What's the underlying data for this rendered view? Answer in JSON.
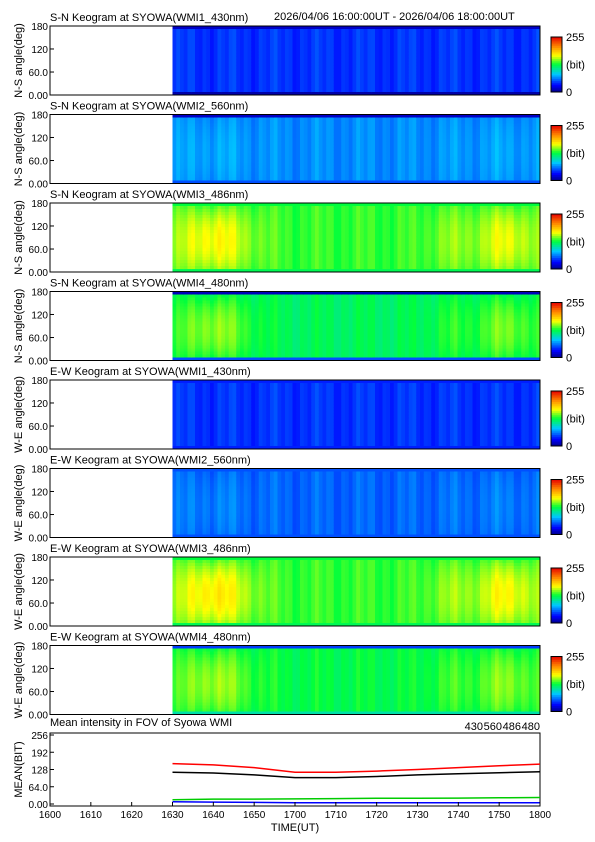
{
  "header": {
    "time_range": "2026/04/06 16:00:00UT - 2026/04/06 18:00:00UT"
  },
  "colorbar": {
    "max_label": "255",
    "unit_label": "(bit)",
    "min_label": "0"
  },
  "keograms": [
    {
      "title": "S-N Keogram at SYOWA(WMI1_430nm)",
      "ylabel": "N-S angle(deg)",
      "yticks": [
        "180",
        "120",
        "60.0",
        "0.00"
      ],
      "base": 0.17,
      "peak": 0.0,
      "edge_top": 0.06,
      "edge_bot": 0.03
    },
    {
      "title": "S-N Keogram at SYOWA(WMI2_560nm)",
      "ylabel": "N-S angle(deg)",
      "yticks": [
        "180",
        "120",
        "60.0",
        "0.00"
      ],
      "base": 0.26,
      "peak": 0.03,
      "edge_top": 0.06,
      "edge_bot": 0.2
    },
    {
      "title": "S-N Keogram at SYOWA(WMI3_486nm)",
      "ylabel": "N-S angle(deg)",
      "yticks": [
        "180",
        "120",
        "60.0",
        "0.00"
      ],
      "base": 0.53,
      "peak": 0.14,
      "edge_top": 0.5,
      "edge_bot": 0.48
    },
    {
      "title": "S-N Keogram at SYOWA(WMI4_480nm)",
      "ylabel": "N-S angle(deg)",
      "yticks": [
        "180",
        "120",
        "60.0",
        "0.00"
      ],
      "base": 0.47,
      "peak": 0.12,
      "edge_top": 0.05,
      "edge_bot": 0.2
    },
    {
      "title": "E-W Keogram at SYOWA(WMI1_430nm)",
      "ylabel": "W-E angle(deg)",
      "yticks": [
        "180",
        "120",
        "60.0",
        "0.00"
      ],
      "base": 0.17,
      "peak": 0.0,
      "edge_top": 0.15,
      "edge_bot": 0.15
    },
    {
      "title": "E-W Keogram at SYOWA(WMI2_560nm)",
      "ylabel": "W-E angle(deg)",
      "yticks": [
        "180",
        "120",
        "60.0",
        "0.00"
      ],
      "base": 0.22,
      "peak": 0.03,
      "edge_top": 0.2,
      "edge_bot": 0.2
    },
    {
      "title": "E-W Keogram at SYOWA(WMI3_486nm)",
      "ylabel": "W-E angle(deg)",
      "yticks": [
        "180",
        "120",
        "60.0",
        "0.00"
      ],
      "base": 0.53,
      "peak": 0.16,
      "edge_top": 0.5,
      "edge_bot": 0.48
    },
    {
      "title": "E-W Keogram at SYOWA(WMI4_480nm)",
      "ylabel": "W-E angle(deg)",
      "yticks": [
        "180",
        "120",
        "60.0",
        "0.00"
      ],
      "base": 0.49,
      "peak": 0.11,
      "edge_top": 0.18,
      "edge_bot": 0.4
    }
  ],
  "mean_panel": {
    "title": "Mean intensity in FOV of Syowa WMI",
    "legend": [
      {
        "label": "430",
        "color": "#0000ff"
      },
      {
        "label": "560",
        "color": "#00cc00"
      },
      {
        "label": "486",
        "color": "#ff0000"
      },
      {
        "label": "480",
        "color": "#000000"
      }
    ],
    "ylabel": "MEAN(BIT)",
    "yticks": [
      "256",
      "192",
      "128",
      "64.0",
      "0.00"
    ]
  },
  "xaxis": {
    "ticks": [
      "1600",
      "1610",
      "1620",
      "1630",
      "1640",
      "1650",
      "1700",
      "1710",
      "1720",
      "1730",
      "1740",
      "1750",
      "1800"
    ],
    "label": "TIME(UT)"
  },
  "chart_data": {
    "type": "line",
    "title": "Mean intensity in FOV of Syowa WMI",
    "xlabel": "TIME(UT)",
    "ylabel": "MEAN(BIT)",
    "x_minutes_after_1600": [
      30,
      40,
      50,
      60,
      70,
      80,
      90,
      100,
      110,
      120
    ],
    "ylim": [
      0,
      256
    ],
    "data_start": "1630",
    "series": [
      {
        "name": "430",
        "color": "#0000ff",
        "values": [
          8,
          7,
          6,
          5,
          5,
          5,
          5,
          5,
          5,
          5
        ]
      },
      {
        "name": "560",
        "color": "#00cc00",
        "values": [
          16,
          18,
          18,
          19,
          20,
          21,
          21,
          22,
          23,
          24
        ]
      },
      {
        "name": "486",
        "color": "#ff0000",
        "values": [
          150,
          145,
          135,
          118,
          118,
          122,
          128,
          135,
          142,
          148
        ]
      },
      {
        "name": "480",
        "color": "#000000",
        "values": [
          118,
          115,
          108,
          98,
          98,
          102,
          108,
          112,
          116,
          120
        ]
      }
    ]
  }
}
